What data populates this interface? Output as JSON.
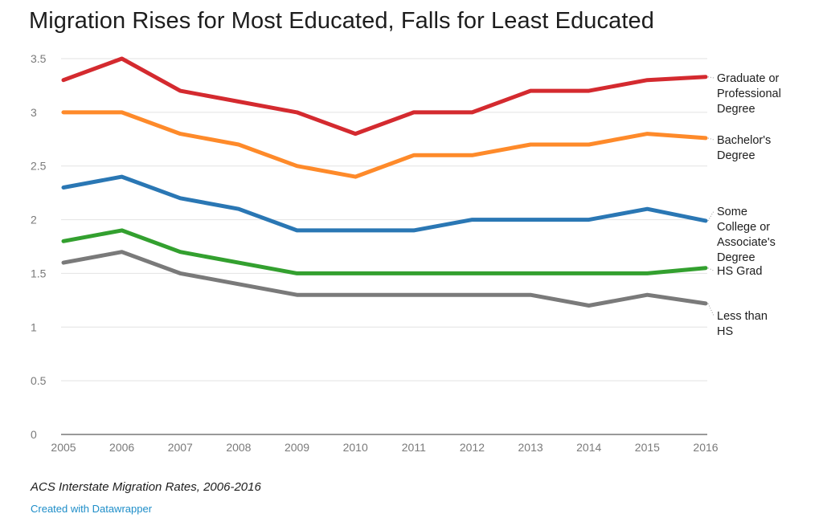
{
  "title": "Migration Rises for Most Educated, Falls for Least Educated",
  "caption": "ACS Interstate Migration Rates, 2006-2016",
  "credit": "Created with Datawrapper",
  "chart_data": {
    "type": "line",
    "title": "Migration Rises for Most Educated, Falls for Least Educated",
    "xlabel": "",
    "ylabel": "",
    "x": [
      "2005",
      "2006",
      "2007",
      "2008",
      "2009",
      "2010",
      "2011",
      "2012",
      "2013",
      "2014",
      "2015",
      "2016"
    ],
    "ylim": [
      0,
      3.5
    ],
    "yticks": [
      "0",
      "0.5",
      "1",
      "1.5",
      "2",
      "2.5",
      "3",
      "3.5"
    ],
    "grid": true,
    "legend": "direct labels right",
    "series": [
      {
        "name": "Graduate or Professional Degree",
        "color": "#d42a2f",
        "values": [
          3.3,
          3.5,
          3.2,
          3.1,
          3.0,
          2.8,
          3.0,
          3.0,
          3.2,
          3.2,
          3.3,
          3.33
        ]
      },
      {
        "name": "Bachelor's Degree",
        "color": "#fe8a2a",
        "values": [
          3.0,
          3.0,
          2.8,
          2.7,
          2.5,
          2.4,
          2.6,
          2.6,
          2.7,
          2.7,
          2.8,
          2.76
        ]
      },
      {
        "name": "Some College or Associate's Degree",
        "color": "#2a77b4",
        "values": [
          2.3,
          2.4,
          2.2,
          2.1,
          1.9,
          1.9,
          1.9,
          2.0,
          2.0,
          2.0,
          2.1,
          1.99
        ]
      },
      {
        "name": "HS Grad",
        "color": "#33a02f",
        "values": [
          1.8,
          1.9,
          1.7,
          1.6,
          1.5,
          1.5,
          1.5,
          1.5,
          1.5,
          1.5,
          1.5,
          1.55
        ]
      },
      {
        "name": "Less than HS",
        "color": "#7a7a7a",
        "values": [
          1.6,
          1.7,
          1.5,
          1.4,
          1.3,
          1.3,
          1.3,
          1.3,
          1.3,
          1.2,
          1.3,
          1.22
        ]
      }
    ],
    "series_labels": [
      "Graduate or\nProfessional\nDegree",
      "Bachelor's\nDegree",
      "Some\nCollege or\nAssociate's\nDegree",
      "HS Grad",
      "Less than\nHS"
    ]
  }
}
